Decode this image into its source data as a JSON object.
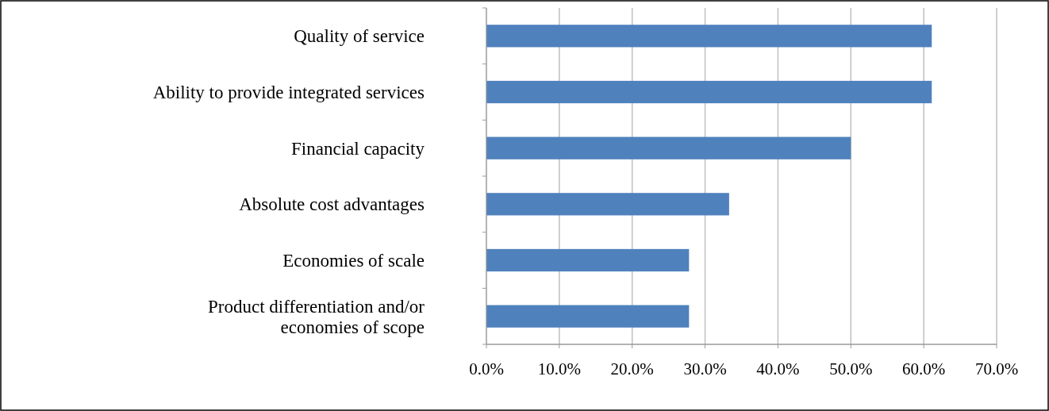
{
  "chart_data": {
    "type": "bar",
    "orientation": "horizontal",
    "categories": [
      "Quality of service",
      "Ability to provide integrated services",
      "Financial capacity",
      "Absolute cost advantages",
      "Economies of scale",
      "Product differentiation and/or economies of scope"
    ],
    "values": [
      61.1,
      61.1,
      50,
      33.3,
      27.8,
      27.8
    ],
    "color": "#4f81bd",
    "xlim": [
      0,
      70
    ],
    "xticks": [
      {
        "value": 0,
        "label": "0.0%"
      },
      {
        "value": 10,
        "label": "10.0%"
      },
      {
        "value": 20,
        "label": "20.0%"
      },
      {
        "value": 30,
        "label": "30.0%"
      },
      {
        "value": 40,
        "label": "40.0%"
      },
      {
        "value": 50,
        "label": "50.0%"
      },
      {
        "value": 60,
        "label": "60.0%"
      },
      {
        "value": 70,
        "label": "70.0%"
      }
    ],
    "grid": "x"
  }
}
